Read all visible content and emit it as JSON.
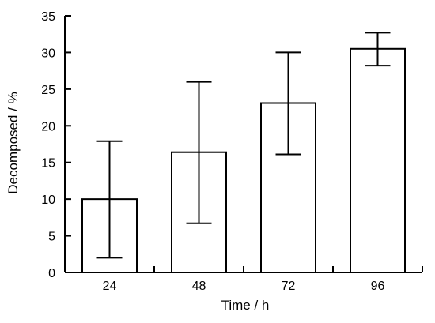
{
  "chart_data": {
    "type": "bar",
    "xlabel": "Time / h",
    "ylabel": "Decomposed / %",
    "categories": [
      "24",
      "48",
      "72",
      "96"
    ],
    "values": [
      10.0,
      16.4,
      23.1,
      30.5
    ],
    "error_upper": [
      17.9,
      26.0,
      30.0,
      32.7
    ],
    "error_lower": [
      2.0,
      6.7,
      16.1,
      28.2
    ],
    "ylim": [
      0,
      35
    ],
    "yticks": [
      0,
      5,
      10,
      15,
      20,
      25,
      30,
      35
    ],
    "grid": false,
    "legend": "none",
    "bar_fill": "#ffffff",
    "bar_stroke": "#000000"
  }
}
